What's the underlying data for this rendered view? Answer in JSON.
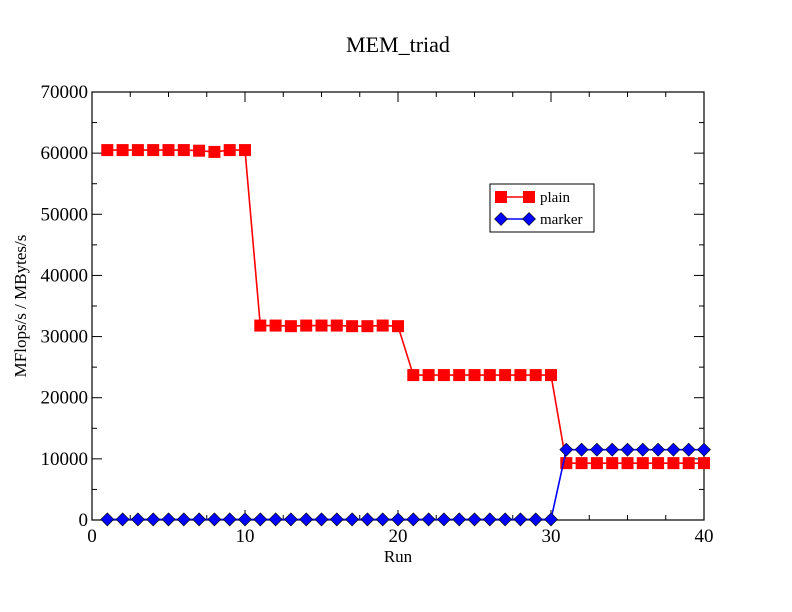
{
  "chart_data": {
    "type": "line",
    "title": "MEM_triad",
    "xlabel": "Run",
    "ylabel": "MFlops/s / MBytes/s",
    "xlim": [
      0,
      40
    ],
    "ylim": [
      0,
      70000
    ],
    "x_ticks": [
      0,
      10,
      20,
      30,
      40
    ],
    "y_ticks": [
      0,
      10000,
      20000,
      30000,
      40000,
      50000,
      60000,
      70000
    ],
    "x_tick_labels": [
      "0",
      "10",
      "20",
      "30",
      "40"
    ],
    "y_tick_labels": [
      "0",
      "10000",
      "20000",
      "30000",
      "40000",
      "50000",
      "60000",
      "70000"
    ],
    "grid": false,
    "legend_position": "upper-right",
    "x": [
      1,
      2,
      3,
      4,
      5,
      6,
      7,
      8,
      9,
      10,
      11,
      12,
      13,
      14,
      15,
      16,
      17,
      18,
      19,
      20,
      21,
      22,
      23,
      24,
      25,
      26,
      27,
      28,
      29,
      30,
      31,
      32,
      33,
      34,
      35,
      36,
      37,
      38,
      39,
      40
    ],
    "series": [
      {
        "name": "plain",
        "color": "#ff0000",
        "marker": "square",
        "values": [
          60500,
          60500,
          60500,
          60500,
          60500,
          60500,
          60400,
          60200,
          60500,
          60500,
          31800,
          31800,
          31700,
          31800,
          31800,
          31800,
          31700,
          31700,
          31800,
          31700,
          23700,
          23700,
          23700,
          23700,
          23700,
          23700,
          23700,
          23700,
          23700,
          23700,
          9300,
          9300,
          9300,
          9300,
          9300,
          9300,
          9300,
          9300,
          9300,
          9300
        ]
      },
      {
        "name": "marker",
        "color": "#0000ff",
        "marker": "diamond",
        "values": [
          100,
          100,
          100,
          100,
          100,
          100,
          100,
          100,
          100,
          100,
          100,
          100,
          100,
          100,
          100,
          100,
          100,
          100,
          100,
          100,
          100,
          100,
          100,
          100,
          100,
          100,
          100,
          100,
          100,
          100,
          11500,
          11500,
          11500,
          11500,
          11500,
          11500,
          11500,
          11500,
          11500,
          11500
        ]
      }
    ]
  }
}
